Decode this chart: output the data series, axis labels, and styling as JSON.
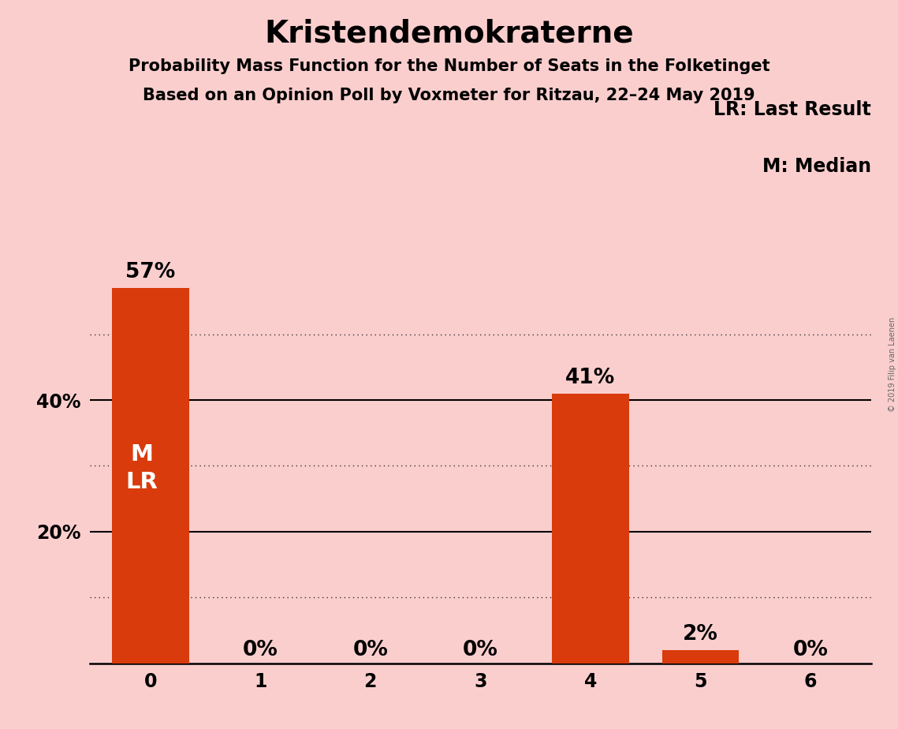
{
  "title": "Kristendemokraterne",
  "subtitle1": "Probability Mass Function for the Number of Seats in the Folketinget",
  "subtitle2": "Based on an Opinion Poll by Voxmeter for Ritzau, 22–24 May 2019",
  "categories": [
    0,
    1,
    2,
    3,
    4,
    5,
    6
  ],
  "values": [
    0.57,
    0.0,
    0.0,
    0.0,
    0.41,
    0.02,
    0.0
  ],
  "bar_color": "#D93B0C",
  "background_color": "#FBCECE",
  "text_color": "#000000",
  "bar_label_color_outside": "#000000",
  "bar_label_color_inside": "#FFFFFF",
  "ylabel_ticks": [
    0.0,
    0.2,
    0.4
  ],
  "ylabel_labels": [
    "",
    "20%",
    "40%"
  ],
  "solid_gridlines": [
    0.2,
    0.4
  ],
  "dotted_gridlines": [
    0.1,
    0.3,
    0.5
  ],
  "ylim": [
    0,
    0.62
  ],
  "legend_text_line1": "LR: Last Result",
  "legend_text_line2": "M: Median",
  "median_bar": 0,
  "bar_annotations": [
    "57%",
    "0%",
    "0%",
    "0%",
    "41%",
    "2%",
    "0%"
  ],
  "ml_label": "M\nLR",
  "copyright_text": "© 2019 Filip van Laenen",
  "title_fontsize": 28,
  "subtitle_fontsize": 15,
  "tick_fontsize": 17,
  "bar_label_fontsize": 19,
  "ml_fontsize": 21,
  "legend_fontsize": 17
}
